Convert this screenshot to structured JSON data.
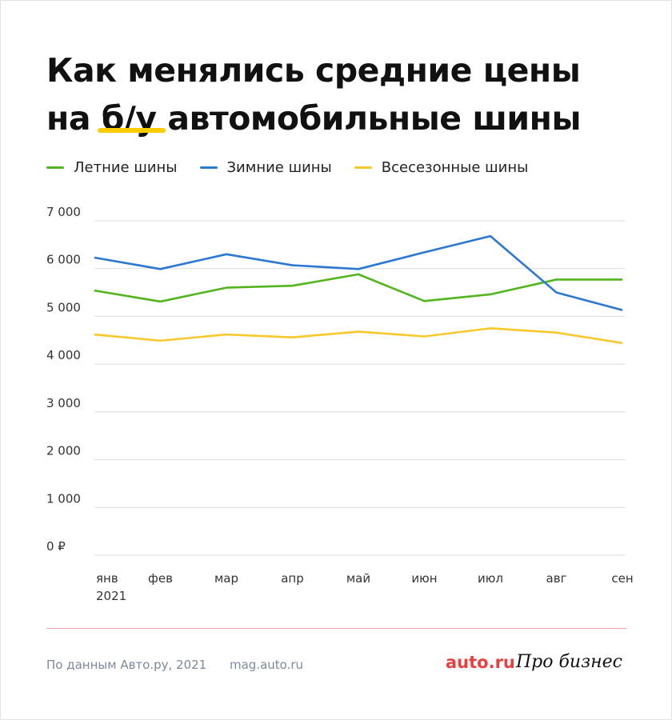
{
  "title_line1": "Как менялись средние цены",
  "title_line2": "на б/у автомобильные шины",
  "chart_data": {
    "type": "line",
    "categories": [
      "янв\n2021",
      "фев",
      "мар",
      "апр",
      "май",
      "июн",
      "июл",
      "авг",
      "сен"
    ],
    "category_labels": [
      "янв",
      "фев",
      "мар",
      "апр",
      "май",
      "июн",
      "июл",
      "авг",
      "сен"
    ],
    "year_label": "2021",
    "y_ticks": [
      "0 ₽",
      "1 000",
      "2 000",
      "3 000",
      "4 000",
      "5 000",
      "6 000",
      "7 000"
    ],
    "ylim": [
      0,
      7000
    ],
    "grid": true,
    "legend_position": "top",
    "series": [
      {
        "name": "Летние шины",
        "color": "#52b51e",
        "values": [
          5540,
          5310,
          5600,
          5640,
          5880,
          5320,
          5460,
          5770,
          5770
        ]
      },
      {
        "name": "Зимние шины",
        "color": "#2b78d0",
        "values": [
          6230,
          5990,
          6300,
          6070,
          5990,
          6340,
          6680,
          5500,
          5130
        ]
      },
      {
        "name": "Всесезонные шины",
        "color": "#f8c82b",
        "values": [
          4620,
          4490,
          4620,
          4560,
          4680,
          4580,
          4750,
          4660,
          4440
        ]
      }
    ]
  },
  "footer": {
    "source": "По данным Авто.ру, 2021",
    "site": "mag.auto.ru",
    "logo_auto": "auto.ru",
    "logo_biz": "Про бизнес"
  }
}
